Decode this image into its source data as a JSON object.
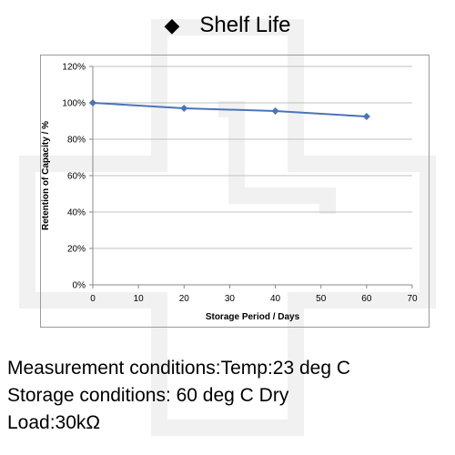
{
  "title": "Shelf Life",
  "title_marker": "◆",
  "chart_data": {
    "type": "line",
    "x": [
      0,
      20,
      40,
      60
    ],
    "series": [
      {
        "values": [
          100,
          97,
          95.5,
          92.5
        ],
        "color": "#4a74b8",
        "marker": "diamond"
      }
    ],
    "xlabel": "Storage Period / Days",
    "ylabel": "Retention of Capacity / %",
    "xlim": [
      0,
      70
    ],
    "ylim": [
      0,
      120
    ],
    "xticks": [
      0,
      10,
      20,
      30,
      40,
      50,
      60,
      70
    ],
    "yticks": [
      0,
      20,
      40,
      60,
      80,
      100,
      120
    ],
    "ytick_labels": [
      "0%",
      "20%",
      "40%",
      "60%",
      "80%",
      "100%",
      "120%"
    ],
    "grid": "horizontal",
    "grid_color": "#c0c0c0",
    "legend": "none"
  },
  "notes": {
    "measurement": "Measurement conditions:Temp:23 deg C",
    "storage": "Storage conditions: 60 deg C Dry",
    "load": "Load:30kΩ"
  }
}
